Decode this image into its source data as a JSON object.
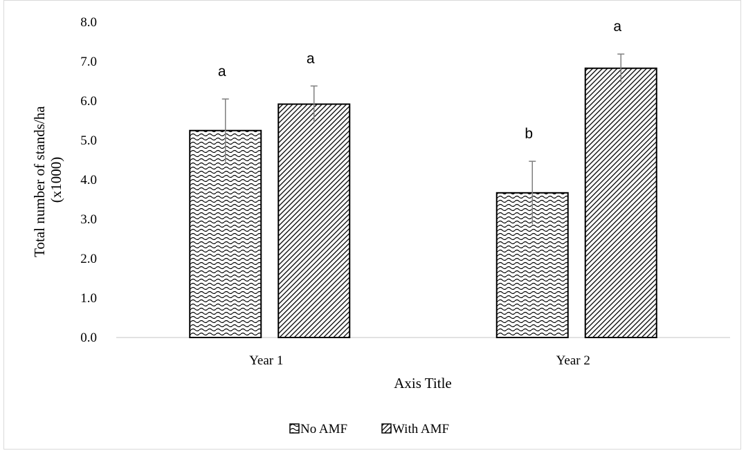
{
  "chart_data": {
    "type": "bar",
    "categories": [
      "Year 1",
      "Year 2"
    ],
    "series": [
      {
        "name": "No AMF",
        "values": [
          5.25,
          3.67
        ],
        "errors": [
          0.8,
          0.8
        ],
        "letters": [
          "a",
          "b"
        ],
        "pattern": "wave"
      },
      {
        "name": "With AMF",
        "values": [
          5.92,
          6.83
        ],
        "errors": [
          0.46,
          0.36
        ],
        "letters": [
          "a",
          "a"
        ],
        "pattern": "diagonal"
      }
    ],
    "title": "",
    "xlabel": "Axis Title",
    "ylabel_lines": [
      "Total number of stands/ha",
      "(x1000)"
    ],
    "ylim": [
      0,
      8
    ],
    "yticks": [
      "0.0",
      "1.0",
      "2.0",
      "3.0",
      "4.0",
      "5.0",
      "6.0",
      "7.0",
      "8.0"
    ],
    "grid": false,
    "legend_position": "bottom",
    "colors": {
      "bar_fill": "#000000",
      "bar_background": "#ffffff",
      "error_bar": "#7f7f7f",
      "axis_line": "#d9d9d9"
    }
  }
}
